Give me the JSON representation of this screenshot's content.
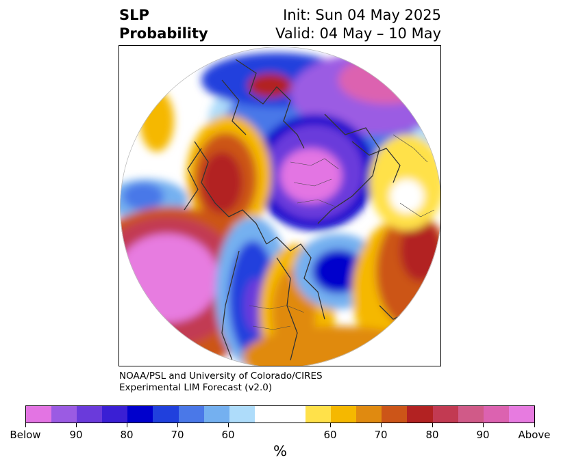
{
  "title": {
    "left_line1": "SLP",
    "left_line2": "Probability",
    "right_line1": "Init: Sun 04 May 2025",
    "right_line2": "Valid: 04 May – 10 May"
  },
  "credit": {
    "line1": "NOAA/PSL and University of Colorado/CIRES",
    "line2": "Experimental LIM Forecast (v2.0)"
  },
  "colorbar": {
    "unit": "%",
    "colors": [
      "#e374e3",
      "#9b5be3",
      "#6a3adb",
      "#3a1fd4",
      "#0000cc",
      "#2040dd",
      "#4a78e8",
      "#74b0f0",
      "#aedcfa",
      "#ffffff",
      "#ffe14a",
      "#f5b800",
      "#e08a10",
      "#cc5518",
      "#b22222",
      "#c23a52",
      "#d05a88",
      "#dc62b0",
      "#e77be0"
    ],
    "tick_labels": [
      "Below",
      "90",
      "80",
      "70",
      "60",
      "60",
      "70",
      "80",
      "90",
      "Above"
    ]
  },
  "legend_colors": {
    "below_strong": "#e374e3",
    "below": "#0000cc",
    "near_normal": "#ffffff",
    "above": "#f5b800",
    "above_strong": "#e77be0"
  }
}
